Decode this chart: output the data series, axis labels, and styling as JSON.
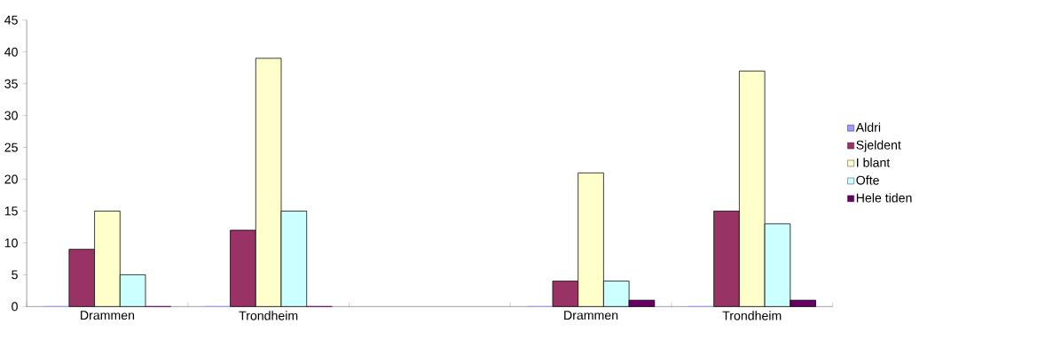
{
  "chart_data": {
    "type": "bar",
    "categories": [
      "Drammen",
      "Trondheim",
      null,
      "Drammen",
      "Trondheim"
    ],
    "series": [
      {
        "name": "Aldri",
        "color": "#9999ff",
        "values": [
          0,
          0,
          null,
          0,
          0
        ]
      },
      {
        "name": "Sjeldent",
        "color": "#993366",
        "values": [
          9,
          12,
          null,
          4,
          15
        ]
      },
      {
        "name": "I blant",
        "color": "#ffffcc",
        "values": [
          15,
          39,
          null,
          21,
          37
        ]
      },
      {
        "name": "Ofte",
        "color": "#ccffff",
        "values": [
          5,
          15,
          null,
          4,
          13
        ]
      },
      {
        "name": "Hele tiden",
        "color": "#660066",
        "values": [
          0,
          0,
          null,
          1,
          1
        ]
      }
    ],
    "ylim": [
      0,
      45
    ],
    "yticks": [
      0,
      5,
      10,
      15,
      20,
      25,
      30,
      35,
      40,
      45
    ],
    "grid": false,
    "legend": "right"
  }
}
